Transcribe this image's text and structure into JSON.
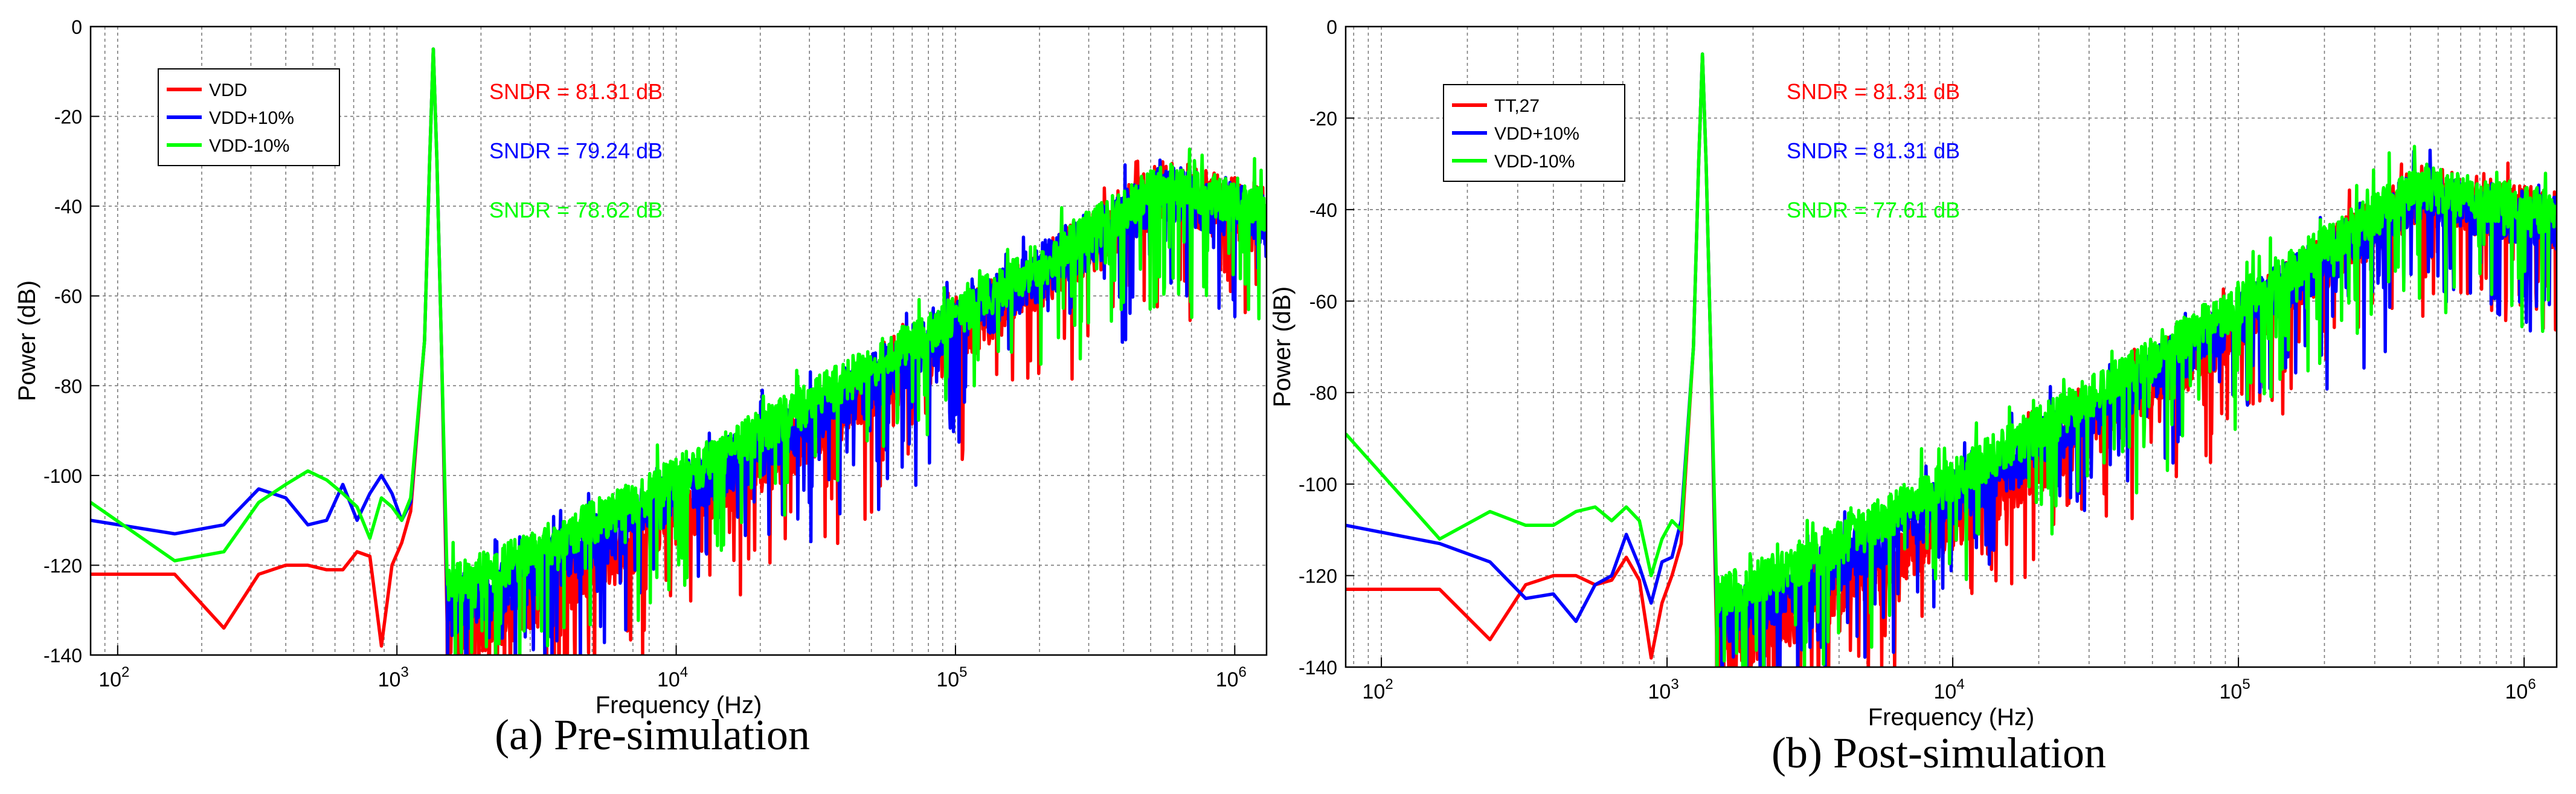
{
  "chart_data": [
    {
      "type": "line",
      "id": "pre",
      "caption": "(a) Pre-simulation",
      "xlabel": "Frequency (Hz)",
      "ylabel": "Power (dB)",
      "xscale": "log",
      "xlim": [
        80,
        1300000
      ],
      "ylim": [
        -140,
        0
      ],
      "grid": true,
      "y_ticks": [
        0,
        -20,
        -40,
        -60,
        -80,
        -100,
        -120,
        -140
      ],
      "x_ticks": [
        {
          "value": 100,
          "base": "10",
          "exp": "2"
        },
        {
          "value": 1000,
          "base": "10",
          "exp": "3"
        },
        {
          "value": 10000,
          "base": "10",
          "exp": "4"
        },
        {
          "value": 100000,
          "base": "10",
          "exp": "5"
        },
        {
          "value": 1000000,
          "base": "10",
          "exp": "6"
        }
      ],
      "legend": {
        "placement": "top-left",
        "entries": [
          "VDD",
          "VDD+10%",
          "VDD-10%"
        ]
      },
      "annotations": [
        {
          "text": "SNDR = 81.31 dB",
          "color": "#ff0000"
        },
        {
          "text": "SNDR = 79.24 dB",
          "color": "#0000ff"
        },
        {
          "text": "SNDR = 78.62 dB",
          "color": "#00ff00"
        }
      ],
      "series": [
        {
          "name": "VDD",
          "color": "#ff0000",
          "low_freq": [
            [
              80,
              -122
            ],
            [
              160,
              -122
            ],
            [
              240,
              -134
            ],
            [
              320,
              -122
            ],
            [
              400,
              -120
            ],
            [
              480,
              -120
            ],
            [
              560,
              -121
            ],
            [
              640,
              -121
            ],
            [
              720,
              -117
            ],
            [
              800,
              -118
            ],
            [
              880,
              -138
            ],
            [
              960,
              -120
            ],
            [
              1040,
              -115
            ],
            [
              1120,
              -108
            ]
          ],
          "tone": {
            "freq": 1350,
            "peak": -5
          },
          "hump": {
            "center": 560000,
            "level": -27
          },
          "noise_floor_low": -127,
          "spur_depth": 13,
          "seed": 7
        },
        {
          "name": "VDD+10%",
          "color": "#0000ff",
          "low_freq": [
            [
              80,
              -110
            ],
            [
              160,
              -113
            ],
            [
              240,
              -111
            ],
            [
              320,
              -103
            ],
            [
              400,
              -105
            ],
            [
              480,
              -111
            ],
            [
              560,
              -110
            ],
            [
              640,
              -102
            ],
            [
              720,
              -110
            ],
            [
              800,
              -104
            ],
            [
              880,
              -100
            ],
            [
              960,
              -104
            ],
            [
              1040,
              -110
            ],
            [
              1120,
              -106
            ]
          ],
          "tone": {
            "freq": 1350,
            "peak": -5
          },
          "hump": {
            "center": 560000,
            "level": -28
          },
          "noise_floor_low": -121,
          "spur_depth": 12,
          "seed": 13
        },
        {
          "name": "VDD-10%",
          "color": "#00ff00",
          "low_freq": [
            [
              80,
              -106
            ],
            [
              160,
              -119
            ],
            [
              240,
              -117
            ],
            [
              320,
              -106
            ],
            [
              400,
              -102
            ],
            [
              480,
              -99
            ],
            [
              560,
              -101
            ],
            [
              640,
              -104
            ],
            [
              720,
              -107
            ],
            [
              800,
              -114
            ],
            [
              880,
              -105
            ],
            [
              960,
              -107
            ],
            [
              1040,
              -110
            ],
            [
              1120,
              -105
            ]
          ],
          "tone": {
            "freq": 1350,
            "peak": -5
          },
          "hump": {
            "center": 560000,
            "level": -28
          },
          "noise_floor_low": -118,
          "spur_depth": 9,
          "seed": 21
        }
      ]
    },
    {
      "type": "line",
      "id": "post",
      "caption": "(b) Post-simulation",
      "xlabel": "Frequency (Hz)",
      "ylabel": "Power (dB)",
      "xscale": "log",
      "xlim": [
        75,
        1300000
      ],
      "ylim": [
        -140,
        0
      ],
      "grid": true,
      "y_ticks": [
        0,
        -20,
        -40,
        -60,
        -80,
        -100,
        -120,
        -140
      ],
      "x_ticks": [
        {
          "value": 100,
          "base": "10",
          "exp": "2"
        },
        {
          "value": 1000,
          "base": "10",
          "exp": "3"
        },
        {
          "value": 10000,
          "base": "10",
          "exp": "4"
        },
        {
          "value": 100000,
          "base": "10",
          "exp": "5"
        },
        {
          "value": 1000000,
          "base": "10",
          "exp": "6"
        }
      ],
      "legend": {
        "placement": "top-left",
        "entries": [
          "TT,27",
          "VDD+10%",
          "VDD-10%"
        ]
      },
      "annotations": [
        {
          "text": "SNDR = 81.31 dB",
          "color": "#ff0000"
        },
        {
          "text": "SNDR = 81.31 dB",
          "color": "#0000ff"
        },
        {
          "text": "SNDR = 77.61 dB",
          "color": "#00ff00"
        }
      ],
      "series": [
        {
          "name": "TT,27",
          "color": "#ff0000",
          "low_freq": [
            [
              75,
              -123
            ],
            [
              160,
              -123
            ],
            [
              240,
              -134
            ],
            [
              320,
              -122
            ],
            [
              400,
              -120
            ],
            [
              480,
              -120
            ],
            [
              560,
              -122
            ],
            [
              640,
              -121
            ],
            [
              720,
              -116
            ],
            [
              800,
              -121
            ],
            [
              880,
              -138
            ],
            [
              960,
              -126
            ],
            [
              1040,
              -120
            ],
            [
              1120,
              -113
            ]
          ],
          "tone": {
            "freq": 1330,
            "peak": -6
          },
          "hump": {
            "center": 420000,
            "level": -28
          },
          "noise_floor_low": -128,
          "spur_depth": 12,
          "seed": 31
        },
        {
          "name": "VDD+10%",
          "color": "#0000ff",
          "low_freq": [
            [
              75,
              -109
            ],
            [
              160,
              -113
            ],
            [
              240,
              -117
            ],
            [
              320,
              -125
            ],
            [
              400,
              -124
            ],
            [
              480,
              -130
            ],
            [
              560,
              -122
            ],
            [
              640,
              -120
            ],
            [
              720,
              -111
            ],
            [
              800,
              -118
            ],
            [
              880,
              -126
            ],
            [
              960,
              -117
            ],
            [
              1040,
              -116
            ],
            [
              1120,
              -108
            ]
          ],
          "tone": {
            "freq": 1330,
            "peak": -6
          },
          "hump": {
            "center": 420000,
            "level": -29
          },
          "noise_floor_low": -122,
          "spur_depth": 11,
          "seed": 37
        },
        {
          "name": "VDD-10%",
          "color": "#00ff00",
          "low_freq": [
            [
              75,
              -89
            ],
            [
              160,
              -112
            ],
            [
              240,
              -106
            ],
            [
              320,
              -109
            ],
            [
              400,
              -109
            ],
            [
              480,
              -106
            ],
            [
              560,
              -105
            ],
            [
              640,
              -108
            ],
            [
              720,
              -105
            ],
            [
              800,
              -108
            ],
            [
              880,
              -120
            ],
            [
              960,
              -112
            ],
            [
              1040,
              -108
            ],
            [
              1120,
              -110
            ]
          ],
          "tone": {
            "freq": 1330,
            "peak": -6
          },
          "hump": {
            "center": 420000,
            "level": -28
          },
          "noise_floor_low": -118,
          "spur_depth": 9,
          "seed": 43
        }
      ]
    }
  ]
}
